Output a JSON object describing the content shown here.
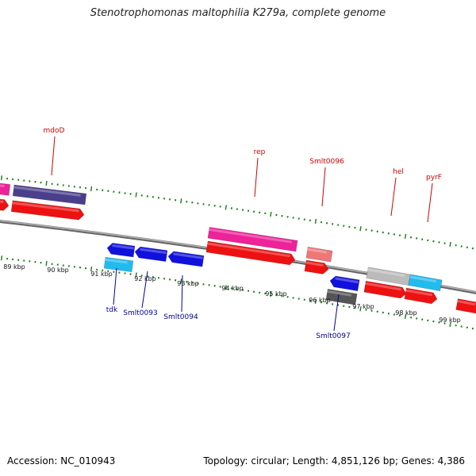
{
  "title": "Stenotrophomonas maltophilia K279a, complete genome",
  "footer": {
    "accession": "Accession: NC_010943",
    "summary": "Topology: circular; Length: 4,851,126 bp; Genes: 4,386"
  },
  "colors": {
    "red": "#ee1111",
    "magenta": "#ee2299",
    "purple": "#4a3f8c",
    "salmon": "#ee7777",
    "grey": "#bbbbbb",
    "cyan": "#22bbee",
    "blue": "#1111dd",
    "darkgrey": "#555555",
    "tick": "#1a7a1a",
    "backbone": "#888888",
    "label_red": "#cc0000",
    "label_blue": "#000099"
  },
  "scale_labels": [
    {
      "kbp": 89,
      "text": "89 kbp"
    },
    {
      "kbp": 90,
      "text": "90 kbp"
    },
    {
      "kbp": 91,
      "text": "91 kbp"
    },
    {
      "kbp": 92,
      "text": "92 kbp"
    },
    {
      "kbp": 93,
      "text": "93 kbp"
    },
    {
      "kbp": 94,
      "text": "94 kbp"
    },
    {
      "kbp": 95,
      "text": "95 kbp"
    },
    {
      "kbp": 96,
      "text": "96 kbp"
    },
    {
      "kbp": 97,
      "text": "97 kbp"
    },
    {
      "kbp": 98,
      "text": "98 kbp"
    },
    {
      "kbp": 99,
      "text": "99 kbp"
    }
  ],
  "labels": [
    {
      "text": "mdoD",
      "color": "label_red"
    },
    {
      "text": "rep",
      "color": "label_red"
    },
    {
      "text": "Smlt0096",
      "color": "label_red"
    },
    {
      "text": "hel",
      "color": "label_red"
    },
    {
      "text": "pyrF",
      "color": "label_red"
    },
    {
      "text": "tdk",
      "color": "label_blue"
    },
    {
      "text": "Smlt0093",
      "color": "label_blue"
    },
    {
      "text": "Smlt0094",
      "color": "label_blue"
    },
    {
      "text": "Smlt0097",
      "color": "label_blue"
    }
  ]
}
